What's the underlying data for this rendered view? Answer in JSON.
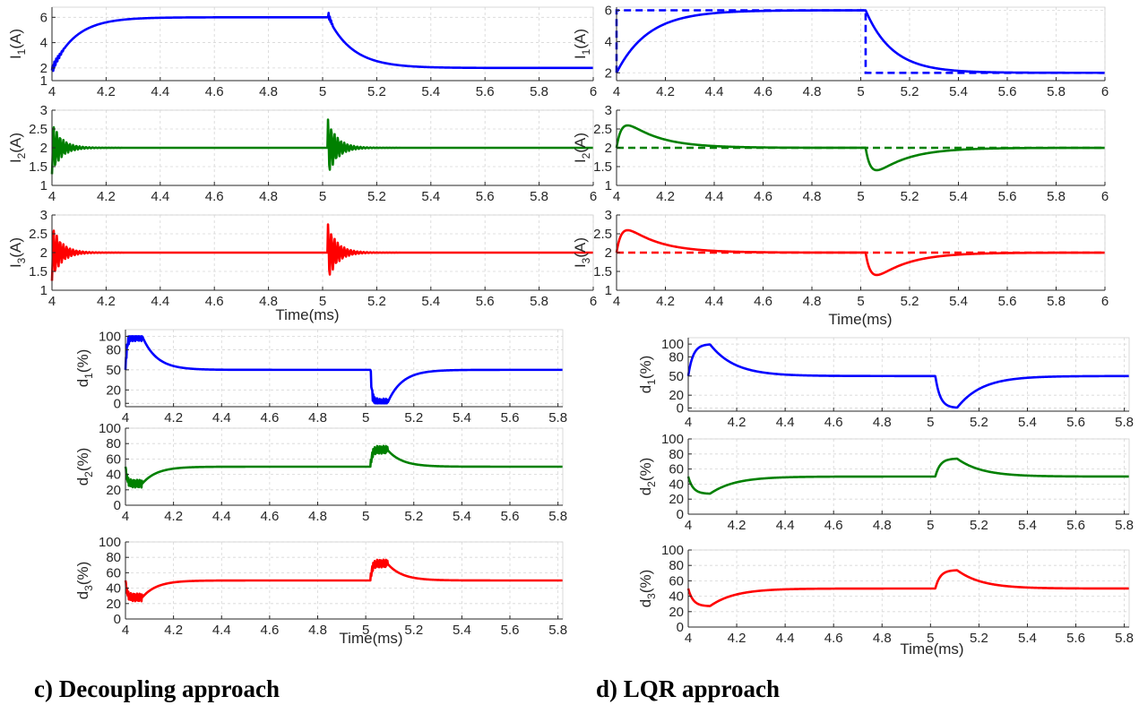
{
  "captions": {
    "left": "c)   Decoupling approach",
    "right": "d)   LQR approach"
  },
  "colors": {
    "ch1": "#0000ff",
    "ch2": "#008000",
    "ch3": "#ff0000",
    "grid": "#d6d6d6",
    "axis": "#262626"
  },
  "chart_data": [
    {
      "id": "c-I1",
      "type": "line",
      "approach": "Decoupling",
      "ylabel": "I_1(A)",
      "xlim": [
        4,
        6
      ],
      "ylim": [
        1,
        6.8
      ],
      "yticks": [
        1,
        2,
        4,
        6
      ],
      "xticklabels": [
        "4",
        "4.2",
        "4.4",
        "4.6",
        "4.8",
        "5",
        "5.2",
        "5.4",
        "5.6",
        "5.8",
        "6"
      ],
      "xlabel": "",
      "grid": true,
      "reference": null,
      "series": [
        {
          "color": "ch1",
          "style": "solid",
          "model": "first-order",
          "x0": 4.0,
          "y0": 1.8,
          "v1": 6.0,
          "t1": 5.02,
          "v2": 2.0,
          "tau1": 0.085,
          "tau2": 0.09,
          "ripple": 0.35,
          "ripple_span": 0.05,
          "spike": 0.5
        }
      ]
    },
    {
      "id": "c-I2",
      "type": "line",
      "approach": "Decoupling",
      "ylabel": "I_2(A)",
      "xlim": [
        4,
        6
      ],
      "ylim": [
        1,
        3
      ],
      "yticks": [
        1,
        1.5,
        2,
        2.5,
        3
      ],
      "xticklabels": [
        "4",
        "4.2",
        "4.4",
        "4.6",
        "4.8",
        "5",
        "5.2",
        "5.4",
        "5.6",
        "5.8",
        "6"
      ],
      "xlabel": "",
      "grid": true,
      "reference": null,
      "series": [
        {
          "color": "ch2",
          "style": "solid",
          "model": "decay-osc",
          "base": 2.0,
          "t1": 4.0,
          "amp1": -0.7,
          "t2": 5.02,
          "amp2": 0.75,
          "tau": 0.035,
          "period": 0.012
        }
      ]
    },
    {
      "id": "c-I3",
      "type": "line",
      "approach": "Decoupling",
      "ylabel": "I_3(A)",
      "xlim": [
        4,
        6
      ],
      "ylim": [
        1,
        3
      ],
      "yticks": [
        1,
        1.5,
        2,
        2.5,
        3
      ],
      "xticklabels": [
        "4",
        "4.2",
        "4.4",
        "4.6",
        "4.8",
        "5",
        "5.2",
        "5.4",
        "5.6",
        "5.8",
        "6"
      ],
      "xlabel": "Time(ms)",
      "grid": true,
      "reference": null,
      "series": [
        {
          "color": "ch3",
          "style": "solid",
          "model": "decay-osc",
          "base": 2.0,
          "t1": 4.0,
          "amp1": -0.75,
          "t2": 5.02,
          "amp2": 0.75,
          "tau": 0.035,
          "period": 0.012
        }
      ]
    },
    {
      "id": "c-d1",
      "type": "line",
      "approach": "Decoupling",
      "ylabel": "d_1(%)",
      "xlim": [
        4,
        5.82
      ],
      "ylim": [
        -5,
        110
      ],
      "yticks": [
        0,
        20,
        50,
        80,
        100
      ],
      "xticklabels": [
        "4",
        "4.2",
        "4.4",
        "4.6",
        "4.8",
        "5",
        "5.2",
        "5.4",
        "5.6",
        "5.8"
      ],
      "xlabel": "",
      "grid": true,
      "reference": null,
      "series": [
        {
          "color": "ch1",
          "style": "solid",
          "model": "saturate",
          "base": 50,
          "t1": 4.0,
          "amp1": 50,
          "t2": 5.02,
          "amp2": -50,
          "hold": 0.07,
          "tau": 0.06,
          "rise": 0.006,
          "ripple": 7,
          "lo": 0,
          "hi": 100
        }
      ]
    },
    {
      "id": "c-d2",
      "type": "line",
      "approach": "Decoupling",
      "ylabel": "d_2(%)",
      "xlim": [
        4,
        5.82
      ],
      "ylim": [
        0,
        100
      ],
      "yticks": [
        0,
        20,
        40,
        60,
        80,
        100
      ],
      "xticklabels": [
        "4",
        "4.2",
        "4.4",
        "4.6",
        "4.8",
        "5",
        "5.2",
        "5.4",
        "5.6",
        "5.8"
      ],
      "xlabel": "",
      "grid": true,
      "reference": null,
      "series": [
        {
          "color": "ch2",
          "style": "solid",
          "model": "saturate",
          "base": 50,
          "t1": 4.0,
          "amp1": -22,
          "t2": 5.02,
          "amp2": 22,
          "hold": 0.07,
          "tau": 0.06,
          "rise": 0.006,
          "ripple": 5,
          "lo": 0,
          "hi": 100
        }
      ]
    },
    {
      "id": "c-d3",
      "type": "line",
      "approach": "Decoupling",
      "ylabel": "d_3(%)",
      "xlim": [
        4,
        5.82
      ],
      "ylim": [
        0,
        100
      ],
      "yticks": [
        0,
        20,
        40,
        60,
        80,
        100
      ],
      "xticklabels": [
        "4",
        "4.2",
        "4.4",
        "4.6",
        "4.8",
        "5",
        "5.2",
        "5.4",
        "5.6",
        "5.8"
      ],
      "xlabel": "Time(ms)",
      "grid": true,
      "reference": null,
      "series": [
        {
          "color": "ch3",
          "style": "solid",
          "model": "saturate",
          "base": 50,
          "t1": 4.0,
          "amp1": -22,
          "t2": 5.02,
          "amp2": 22,
          "hold": 0.07,
          "tau": 0.06,
          "rise": 0.006,
          "ripple": 5,
          "lo": 0,
          "hi": 100
        }
      ]
    },
    {
      "id": "d-I1",
      "type": "line",
      "approach": "LQR",
      "ylabel": "I_1(A)",
      "xlim": [
        4,
        6
      ],
      "ylim": [
        1.5,
        6.2
      ],
      "yticks": [
        2,
        4,
        6
      ],
      "xticklabels": [
        "4",
        "4.2",
        "4.4",
        "4.6",
        "4.8",
        "5",
        "5.2",
        "5.4",
        "5.6",
        "5.8",
        "6"
      ],
      "xlabel": "",
      "grid": true,
      "reference": {
        "color": "ch1",
        "steps": [
          [
            4.0,
            2
          ],
          [
            4.0,
            6
          ],
          [
            5.02,
            6
          ],
          [
            5.02,
            2
          ],
          [
            6.0,
            2
          ]
        ]
      },
      "series": [
        {
          "color": "ch1",
          "style": "solid",
          "model": "first-order",
          "x0": 4.0,
          "y0": 2.0,
          "v1": 6.0,
          "t1": 5.02,
          "v2": 2.0,
          "tau1": 0.13,
          "tau2": 0.11,
          "ripple": 0,
          "ripple_span": 0,
          "spike": 0
        }
      ]
    },
    {
      "id": "d-I2",
      "type": "line",
      "approach": "LQR",
      "ylabel": "I_2(A)",
      "xlim": [
        4,
        6
      ],
      "ylim": [
        1,
        3
      ],
      "yticks": [
        1,
        1.5,
        2,
        2.5,
        3
      ],
      "xticklabels": [
        "4",
        "4.2",
        "4.4",
        "4.6",
        "4.8",
        "5",
        "5.2",
        "5.4",
        "5.6",
        "5.8",
        "6"
      ],
      "xlabel": "",
      "grid": true,
      "reference": {
        "color": "ch2",
        "steps": [
          [
            4.0,
            2
          ],
          [
            6.0,
            2
          ]
        ]
      },
      "series": [
        {
          "color": "ch2",
          "style": "solid",
          "model": "bump",
          "base": 2.0,
          "t1": 4.0,
          "amp1": 0.65,
          "t2": 5.02,
          "amp2": -0.65,
          "rise": 0.025,
          "fall": 0.13
        }
      ]
    },
    {
      "id": "d-I3",
      "type": "line",
      "approach": "LQR",
      "ylabel": "I_3(A)",
      "xlim": [
        4,
        6
      ],
      "ylim": [
        1,
        3
      ],
      "yticks": [
        1,
        1.5,
        2,
        2.5,
        3
      ],
      "xticklabels": [
        "4",
        "4.2",
        "4.4",
        "4.6",
        "4.8",
        "5",
        "5.2",
        "5.4",
        "5.6",
        "5.8",
        "6"
      ],
      "xlabel": "Time(ms)",
      "grid": true,
      "reference": {
        "color": "ch3",
        "steps": [
          [
            4.0,
            2
          ],
          [
            6.0,
            2
          ]
        ]
      },
      "series": [
        {
          "color": "ch3",
          "style": "solid",
          "model": "bump",
          "base": 2.0,
          "t1": 4.0,
          "amp1": 0.65,
          "t2": 5.02,
          "amp2": -0.65,
          "rise": 0.025,
          "fall": 0.13
        }
      ]
    },
    {
      "id": "d-d1",
      "type": "line",
      "approach": "LQR",
      "ylabel": "d_1(%)",
      "xlim": [
        4,
        5.82
      ],
      "ylim": [
        -5,
        110
      ],
      "yticks": [
        0,
        20,
        50,
        80,
        100
      ],
      "xticklabels": [
        "4",
        "4.2",
        "4.4",
        "4.6",
        "4.8",
        "5",
        "5.2",
        "5.4",
        "5.6",
        "5.8"
      ],
      "xlabel": "",
      "grid": true,
      "reference": null,
      "series": [
        {
          "color": "ch1",
          "style": "solid",
          "model": "saturate",
          "base": 50,
          "t1": 4.0,
          "amp1": 50,
          "t2": 5.02,
          "amp2": -50,
          "hold": 0.09,
          "tau": 0.1,
          "rise": 0.02,
          "ripple": 0,
          "lo": 0,
          "hi": 100
        }
      ]
    },
    {
      "id": "d-d2",
      "type": "line",
      "approach": "LQR",
      "ylabel": "d_2(%)",
      "xlim": [
        4,
        5.82
      ],
      "ylim": [
        0,
        100
      ],
      "yticks": [
        0,
        20,
        40,
        60,
        80,
        100
      ],
      "xticklabels": [
        "4",
        "4.2",
        "4.4",
        "4.6",
        "4.8",
        "5",
        "5.2",
        "5.4",
        "5.6",
        "5.8"
      ],
      "xlabel": "",
      "grid": true,
      "reference": null,
      "series": [
        {
          "color": "ch2",
          "style": "solid",
          "model": "saturate",
          "base": 50,
          "t1": 4.0,
          "amp1": -23,
          "t2": 5.02,
          "amp2": 24,
          "hold": 0.09,
          "tau": 0.1,
          "rise": 0.02,
          "ripple": 0,
          "lo": 0,
          "hi": 100
        }
      ]
    },
    {
      "id": "d-d3",
      "type": "line",
      "approach": "LQR",
      "ylabel": "d_3(%)",
      "xlim": [
        4,
        5.82
      ],
      "ylim": [
        0,
        100
      ],
      "yticks": [
        0,
        20,
        40,
        60,
        80,
        100
      ],
      "xticklabels": [
        "4",
        "4.2",
        "4.4",
        "4.6",
        "4.8",
        "5",
        "5.2",
        "5.4",
        "5.6",
        "5.8"
      ],
      "xlabel": "Time(ms)",
      "grid": true,
      "reference": null,
      "series": [
        {
          "color": "ch3",
          "style": "solid",
          "model": "saturate",
          "base": 50,
          "t1": 4.0,
          "amp1": -23,
          "t2": 5.02,
          "amp2": 24,
          "hold": 0.09,
          "tau": 0.1,
          "rise": 0.02,
          "ripple": 0,
          "lo": 0,
          "hi": 100
        }
      ]
    }
  ]
}
